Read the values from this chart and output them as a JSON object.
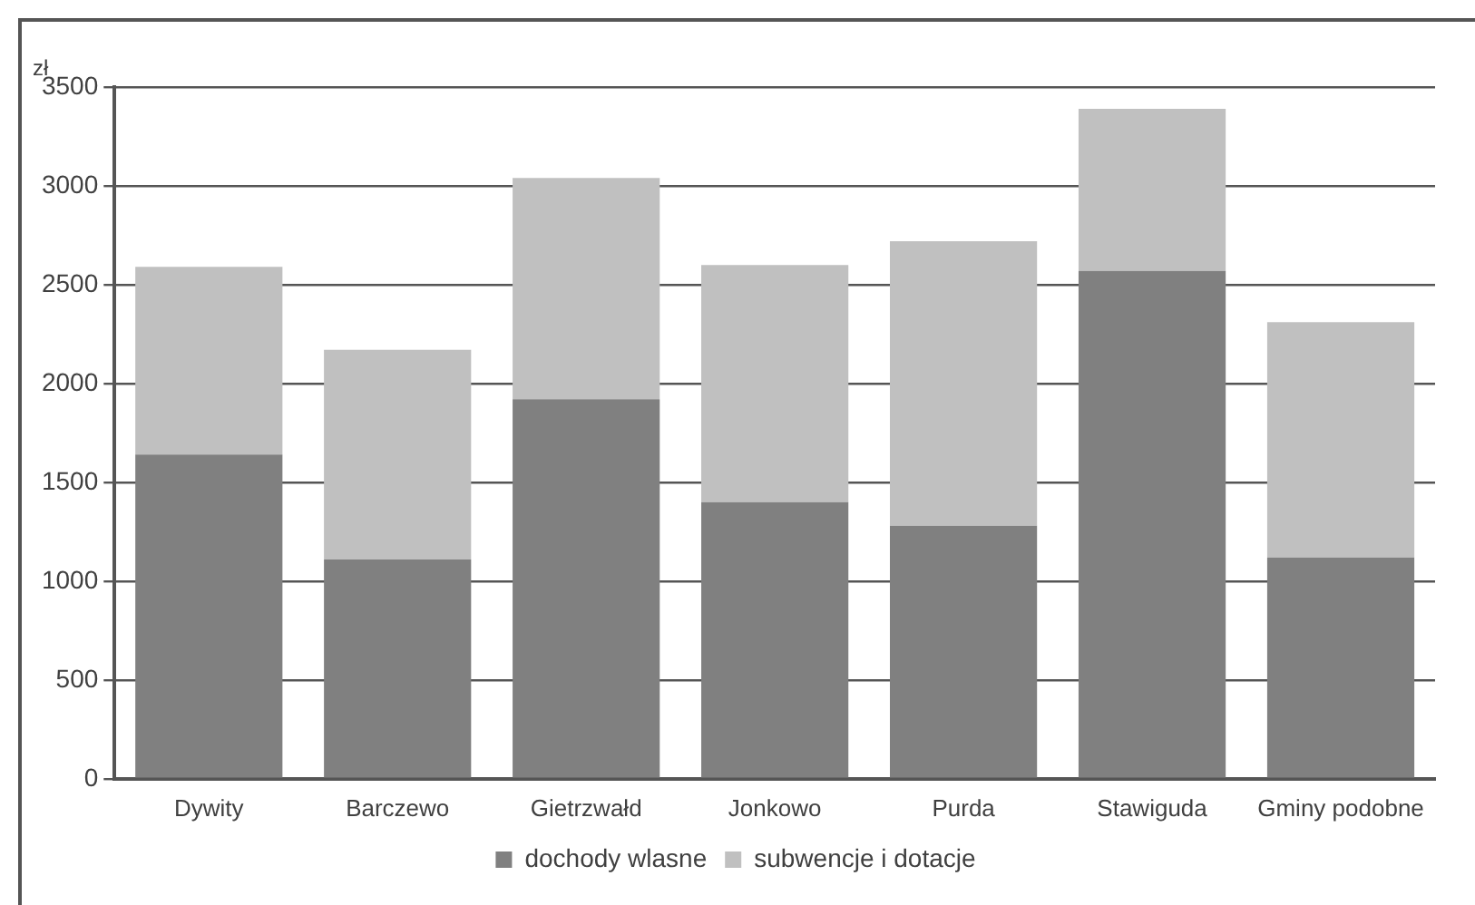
{
  "chart_data": {
    "type": "bar",
    "stacked": true,
    "ylabel": "zł",
    "categories": [
      "Dywity",
      "Barczewo",
      "Gietrzwałd",
      "Jonkowo",
      "Purda",
      "Stawiguda",
      "Gminy podobne"
    ],
    "series": [
      {
        "name": "dochody wlasne",
        "color": "#808080",
        "values": [
          1640,
          1110,
          1920,
          1400,
          1280,
          2570,
          1120
        ]
      },
      {
        "name": "subwencje i dotacje",
        "color": "#c0c0c0",
        "values": [
          950,
          1060,
          1120,
          1200,
          1440,
          820,
          1190
        ]
      }
    ],
    "ylim": [
      0,
      3500
    ],
    "yticks": [
      0,
      500,
      1000,
      1500,
      2000,
      2500,
      3000,
      3500
    ],
    "grid": "y",
    "legend": "bottom"
  }
}
